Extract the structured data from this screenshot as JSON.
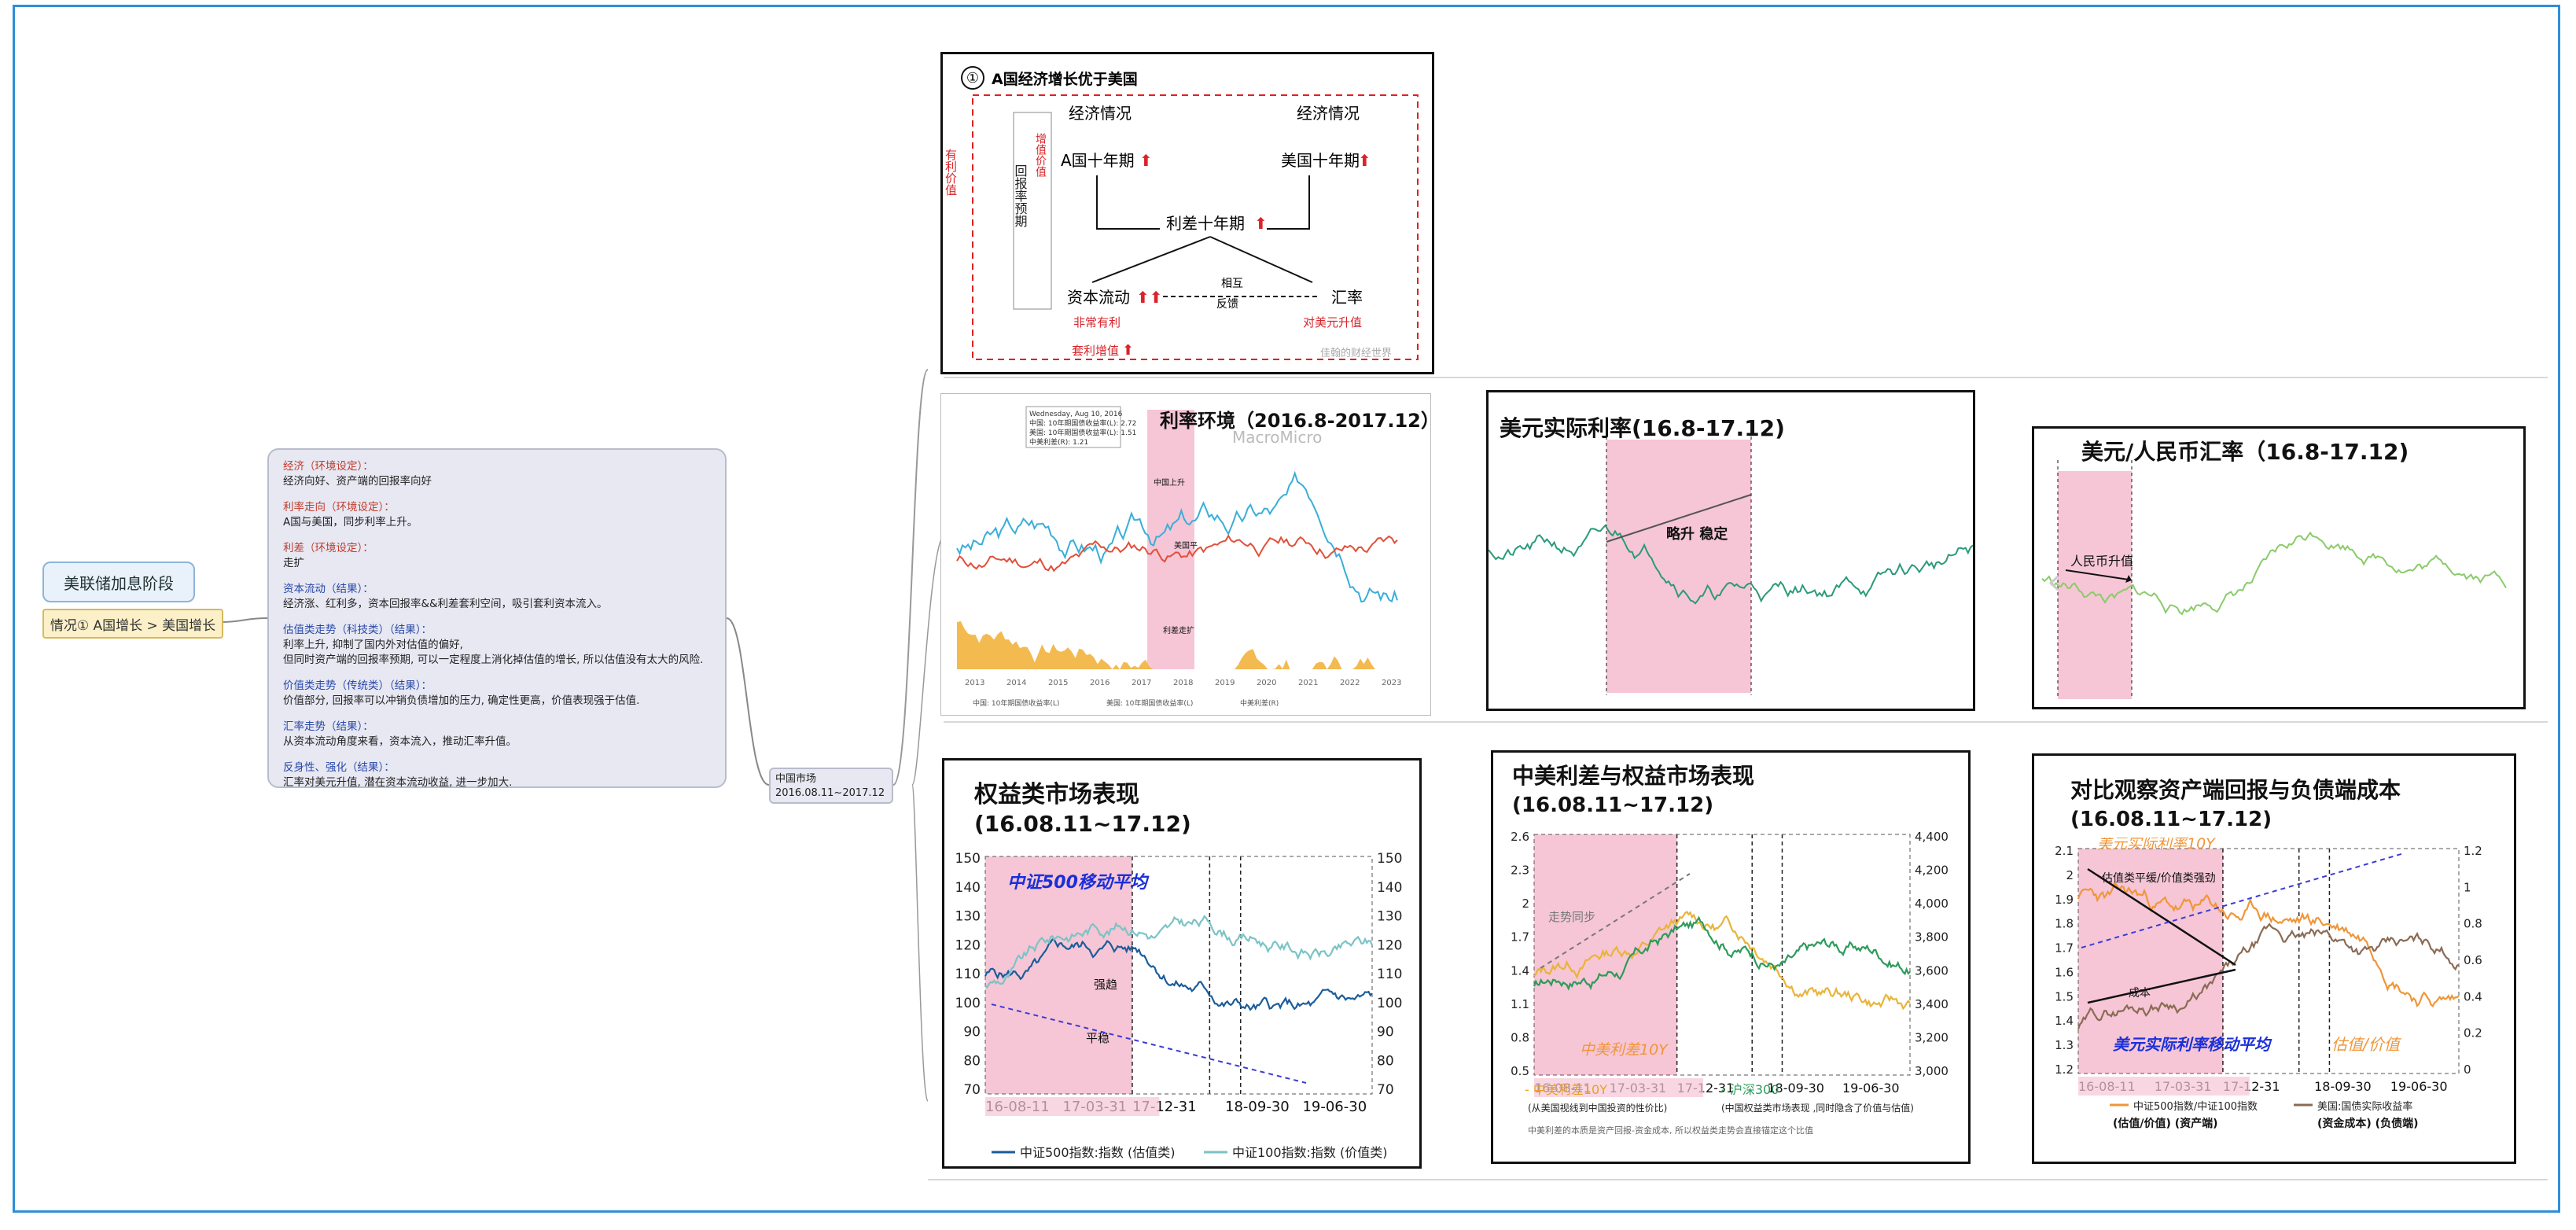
{
  "root": {
    "title": "美联储加息阶段"
  },
  "case": {
    "label": "情况① A国增长 > 美国增长"
  },
  "notes": [
    {
      "head": "经济（环境设定）：",
      "body": [
        "经济向好、资产端的回报率向好"
      ],
      "color": "red"
    },
    {
      "head": "利率走向（环境设定）：",
      "body": [
        "A国与美国，同步利率上升。"
      ],
      "color": "red"
    },
    {
      "head": "利差（环境设定）：",
      "body": [
        "走扩"
      ],
      "color": "red"
    },
    {
      "head": "资本流动（结果）：",
      "body": [
        "经济涨、红利多，资本回报率&&利差套利空间，吸引套利资本流入。"
      ],
      "color": "blue"
    },
    {
      "head": "估值类走势（科技类）（结果）：",
      "body": [
        "利率上升, 抑制了国内外对估值的偏好,",
        "但同时资产端的回报率预期, 可以一定程度上消化掉估值的增长, 所以估值没有太大的风险."
      ],
      "color": "blue"
    },
    {
      "head": "价值类走势（传统类）（结果）：",
      "body": [
        "价值部分, 回报率可以冲销负债增加的压力, 确定性更高，价值表现强于估值."
      ],
      "color": "blue"
    },
    {
      "head": "汇率走势（结果）：",
      "body": [
        "从资本流动角度来看，资本流入，推动汇率升值。"
      ],
      "color": "blue"
    },
    {
      "head": "反身性、强化（结果）：",
      "body": [
        "汇率对美元升值, 潜在资本流动收益, 进一步加大."
      ],
      "color": "blue"
    }
  ],
  "market": {
    "line1": "中国市场",
    "line2": "2016.08.11~2017.12"
  },
  "diagram": {
    "title": "A国经济增长优于美国",
    "num": "①",
    "left_label": "有利价值",
    "econ_a": "经济情况",
    "econ_b": "经济情况",
    "tenyear_a": "A国十年期",
    "tenyear_b": "美国十年期",
    "spread": "利差十年期",
    "capital": "资本流动",
    "fx": "汇率",
    "feedback_1": "相互",
    "feedback_2": "反馈",
    "growth_label": "增值价值",
    "return_label": "回报率预期",
    "arb1": "非常有利",
    "arb2": "对美元升值",
    "arb3": "套利增值",
    "watermark": "佳翰的财经世界"
  },
  "charts_row1": [
    {
      "title": "利率环境（2016.8-2017.12）",
      "watermark": "MacroMicro",
      "x_ticks": [
        "2013",
        "2014",
        "2015",
        "2016",
        "2017",
        "2018",
        "2019",
        "2020",
        "2021",
        "2022",
        "2023"
      ],
      "legend": [
        "中国: 10年期国债收益率(L)",
        "美国: 10年期国债收益率(L)",
        "中美利差(R)"
      ],
      "annotations": [
        "中国上升",
        "美国平",
        "利差走扩"
      ],
      "tooltip": [
        "Wednesday, Aug 10, 2016",
        "中国: 10年期国债收益率(L): 2.72",
        "美国: 10年期国债收益率(L): 1.51",
        "中美利差(R): 1.21"
      ]
    },
    {
      "title": "美元实际利率(16.8-17.12)",
      "annotation": "略升 稳定"
    },
    {
      "title": "美元/人民币汇率（16.8-17.12)",
      "annotation": "人民币升值"
    }
  ],
  "chart_equity": {
    "title": "权益类市场表现",
    "range": "(16.08.11~17.12)",
    "label_ma": "中证500移动平均",
    "ann_strong": "强趋",
    "ann_flat": "平稳",
    "left_ticks": [
      "150",
      "140",
      "130",
      "120",
      "110",
      "100",
      "90",
      "80",
      "70"
    ],
    "right_ticks": [
      "150",
      "140",
      "130",
      "120",
      "110",
      "100",
      "90",
      "80",
      "70"
    ],
    "x_ticks": [
      "16-08-11",
      "17-03-31",
      "17-12-31",
      "18-09-30",
      "19-06-30"
    ],
    "legend": [
      "中证500指数:指数 (估值类)",
      "中证100指数:指数 (价值类)"
    ],
    "colors": {
      "s1": "#1b5c9a",
      "s2": "#7cc3c5"
    }
  },
  "chart_spread": {
    "title": "中美利差与权益市场表现",
    "range": "(16.08.11~17.12)",
    "ann_sync": "走势同步",
    "label_spread": "中美利差10Y",
    "left_ticks": [
      "2.6",
      "2.3",
      "2",
      "1.7",
      "1.4",
      "1.1",
      "0.8",
      "0.5"
    ],
    "right_ticks": [
      "4,400",
      "4,200",
      "4,000",
      "3,800",
      "3,600",
      "3,400",
      "3,200",
      "3,000"
    ],
    "x_ticks": [
      "16-08-11",
      "17-03-31",
      "17-12-31",
      "18-09-30",
      "19-06-30"
    ],
    "legend": [
      "中美利差10Y",
      "沪深300"
    ],
    "legend_sub": [
      "(从美国视线到中国投资的性价比)",
      "(中国权益类市场表现 ,同时隐含了价值与估值)"
    ],
    "footnote": "中美利差的本质是资产回报-资金成本, 所以权益类走势会直接锚定这个比值",
    "colors": {
      "s1": "#e8b43a",
      "s2": "#2e9a5b"
    }
  },
  "chart_cost": {
    "title": "对比观察资产端回报与负债端成本",
    "range": "(16.08.11~17.12)",
    "label_top": "美元实际利率10Y",
    "ann_1": "估值类平缓/价值类强劲",
    "ann_cost": "成本",
    "label_ma": "美元实际利率移动平均",
    "label_val": "估值/价值",
    "left_ticks": [
      "2.1",
      "2",
      "1.9",
      "1.8",
      "1.7",
      "1.6",
      "1.5",
      "1.4",
      "1.3",
      "1.2"
    ],
    "right_ticks": [
      "1.2",
      "1",
      "0.8",
      "0.6",
      "0.4",
      "0.2",
      "0"
    ],
    "x_ticks": [
      "16-08-11",
      "17-03-31",
      "17-12-31",
      "18-09-30",
      "19-06-30"
    ],
    "legend": [
      "中证500指数/中证100指数",
      "美国:国债实际收益率"
    ],
    "legend_sub": [
      "(估值/价值) (资产端)",
      "(资金成本) (负债端)"
    ],
    "colors": {
      "s1": "#f0963a",
      "s2": "#8a6b55"
    }
  },
  "colors": {
    "pink": "#f6c6d6",
    "accent_red": "#d8242a",
    "frame": "#2e8fd8"
  }
}
